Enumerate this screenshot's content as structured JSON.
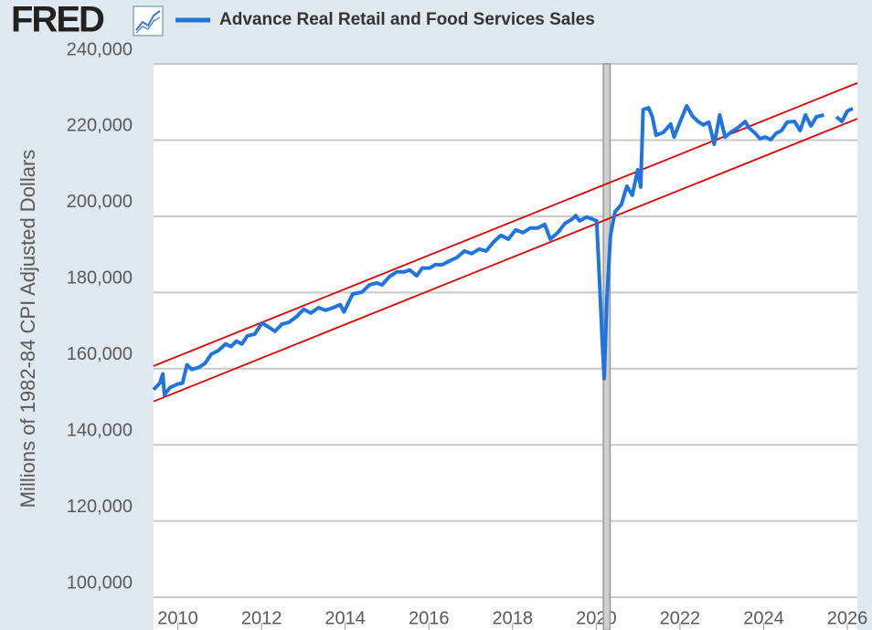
{
  "chart_data": {
    "type": "line",
    "logo": "FRED",
    "y_axis_label": "Millions of 1982-84 CPI Adjusted Dollars",
    "x": [
      2009.42,
      2009.57,
      2009.64,
      2009.68,
      2009.81,
      2010.0,
      2010.11,
      2010.22,
      2010.33,
      2010.5,
      2010.65,
      2010.8,
      2010.97,
      2011.14,
      2011.27,
      2011.4,
      2011.53,
      2011.66,
      2011.84,
      2012.01,
      2012.16,
      2012.32,
      2012.49,
      2012.66,
      2012.84,
      2013.01,
      2013.18,
      2013.36,
      2013.53,
      2013.71,
      2013.88,
      2013.97,
      2014.18,
      2014.4,
      2014.58,
      2014.75,
      2014.88,
      2015.06,
      2015.23,
      2015.41,
      2015.54,
      2015.71,
      2015.84,
      2016.02,
      2016.15,
      2016.32,
      2016.5,
      2016.67,
      2016.85,
      2017.02,
      2017.2,
      2017.37,
      2017.55,
      2017.72,
      2017.9,
      2018.07,
      2018.25,
      2018.42,
      2018.6,
      2018.77,
      2018.9,
      2019.08,
      2019.25,
      2019.43,
      2019.51,
      2019.6,
      2019.77,
      2019.9,
      2020.01,
      2020.08,
      2020.14,
      2020.19,
      2020.25,
      2020.34,
      2020.45,
      2020.6,
      2020.73,
      2020.86,
      2020.99,
      2021.06,
      2021.12,
      2021.25,
      2021.34,
      2021.43,
      2021.6,
      2021.78,
      2021.86,
      2021.99,
      2022.16,
      2022.3,
      2022.43,
      2022.56,
      2022.69,
      2022.82,
      2022.95,
      2023.08,
      2023.21,
      2023.38,
      2023.56,
      2023.65,
      2023.78,
      2023.91,
      2024.04,
      2024.17,
      2024.3,
      2024.43,
      2024.56,
      2024.74,
      2024.87,
      2025.0,
      2025.13,
      2025.26,
      2025.44,
      2025.6,
      2025.74,
      2025.87,
      2026.0,
      2026.13
    ],
    "series": [
      {
        "name": "Advance Real Retail and Food Services Sales",
        "color": "#1f74e0",
        "values": [
          154500,
          156200,
          158600,
          153100,
          155000,
          156000,
          156200,
          161000,
          159800,
          160300,
          161400,
          163800,
          164800,
          166500,
          165800,
          167200,
          166500,
          168600,
          169100,
          172000,
          171000,
          169800,
          171700,
          172200,
          173700,
          175600,
          174600,
          176000,
          175300,
          176000,
          176800,
          174900,
          179600,
          180100,
          182000,
          182500,
          182000,
          184200,
          185400,
          185400,
          185900,
          184400,
          186400,
          186400,
          187300,
          187300,
          188300,
          189200,
          190900,
          190200,
          191400,
          190900,
          193300,
          195000,
          194000,
          196400,
          195700,
          196900,
          196900,
          197900,
          194000,
          195700,
          198100,
          199300,
          200200,
          198800,
          199800,
          199300,
          198800,
          182500,
          168100,
          157400,
          177700,
          195000,
          201200,
          203100,
          207900,
          205500,
          212200,
          207700,
          228000,
          228500,
          226100,
          221300,
          222000,
          224200,
          220800,
          224400,
          229000,
          226300,
          224900,
          224000,
          224700,
          218900,
          226600,
          220800,
          222000,
          223200,
          224900,
          223200,
          222000,
          220400,
          220800,
          220100,
          221800,
          222500,
          224700,
          224900,
          222500,
          226600,
          223700,
          226100,
          226600,
          null,
          226100,
          224900,
          227600,
          228300
        ]
      }
    ],
    "recessions": [
      [
        2020.17,
        2020.33
      ]
    ],
    "trend_lines": [
      {
        "color": "#e00000",
        "x": [
          2009.42,
          2026.24
        ],
        "values": [
          160700,
          235000
        ]
      },
      {
        "color": "#e00000",
        "x": [
          2009.42,
          2026.24
        ],
        "values": [
          151400,
          225600
        ]
      }
    ],
    "xlim": [
      2009.42,
      2026.24
    ],
    "xticks": [
      2010,
      2012,
      2014,
      2016,
      2018,
      2020,
      2022,
      2024,
      2026
    ],
    "ylim": [
      91400,
      240000
    ],
    "yticks": [
      {
        "value": 100000,
        "label": "100,000"
      },
      {
        "value": 120000,
        "label": "120,000"
      },
      {
        "value": 140000,
        "label": "140,000"
      },
      {
        "value": 160000,
        "label": "160,000"
      },
      {
        "value": 180000,
        "label": "180,000"
      },
      {
        "value": 200000,
        "label": "200,000"
      },
      {
        "value": 220000,
        "label": "220,000"
      },
      {
        "value": 240000,
        "label": "240,000"
      }
    ],
    "grid": true
  }
}
